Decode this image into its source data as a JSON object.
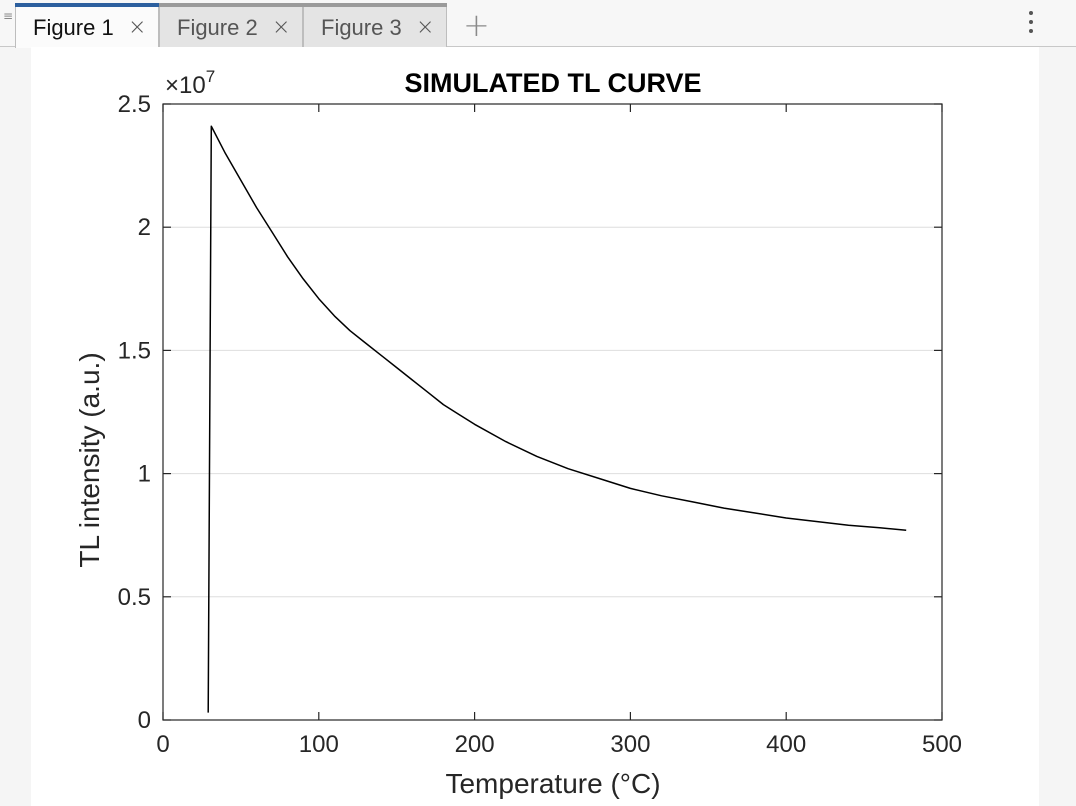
{
  "window": {
    "tabs": [
      {
        "label": "Figure 1",
        "active": true
      },
      {
        "label": "Figure 2",
        "active": false
      },
      {
        "label": "Figure 3",
        "active": false
      }
    ],
    "close_glyph": "×",
    "add_tab_glyph": "+",
    "menu_icon": "kebab-menu-icon",
    "grip_icon": "panel-grip-icon"
  },
  "chart_data": {
    "type": "line",
    "title": "SIMULATED TL CURVE",
    "xlabel": "Temperature (°C)",
    "ylabel": "TL intensity (a.u.)",
    "y_exponent_label": "×10",
    "y_exponent_power": "7",
    "xlim": [
      0,
      500
    ],
    "ylim": [
      0,
      2.5
    ],
    "y_scale": 10000000,
    "x_ticks": [
      "0",
      "100",
      "200",
      "300",
      "400",
      "500"
    ],
    "y_ticks": [
      "0",
      "0.5",
      "1",
      "1.5",
      "2",
      "2.5"
    ],
    "grid": "horizontal",
    "line_color": "#000000",
    "series": [
      {
        "x": [
          29,
          31,
          40,
          50,
          60,
          70,
          80,
          90,
          100,
          110,
          120,
          130,
          140,
          150,
          160,
          170,
          180,
          190,
          200,
          220,
          240,
          260,
          280,
          300,
          320,
          340,
          360,
          380,
          400,
          420,
          440,
          460,
          477
        ],
        "y": [
          0.03,
          2.41,
          2.3,
          2.19,
          2.08,
          1.98,
          1.88,
          1.79,
          1.71,
          1.64,
          1.58,
          1.53,
          1.48,
          1.43,
          1.38,
          1.33,
          1.28,
          1.24,
          1.2,
          1.13,
          1.07,
          1.02,
          0.98,
          0.94,
          0.91,
          0.885,
          0.86,
          0.84,
          0.82,
          0.805,
          0.79,
          0.78,
          0.77
        ]
      }
    ]
  }
}
